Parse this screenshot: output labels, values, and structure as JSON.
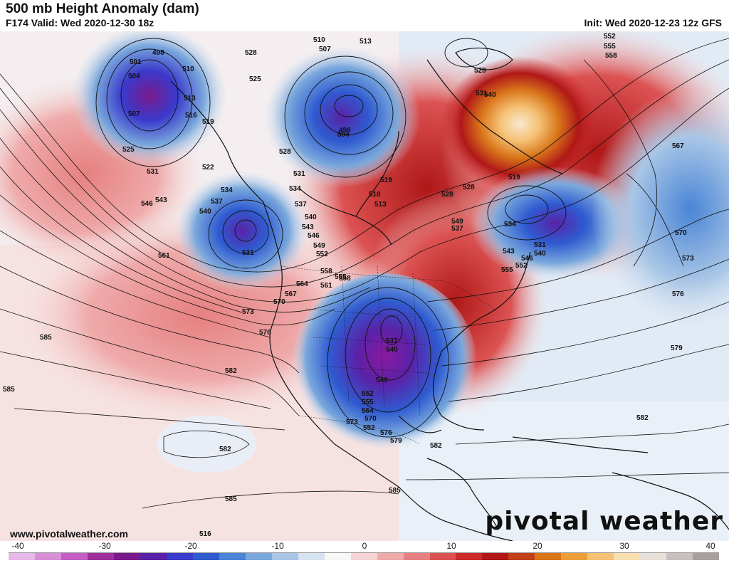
{
  "header": {
    "title": "500 mb Height Anomaly (dam)",
    "valid": "F174 Valid: Wed 2020-12-30 18z",
    "init": "Init: Wed 2020-12-23 12z GFS"
  },
  "footer": {
    "website": "www.pivotalweather.com",
    "brand": "pivotal weather"
  },
  "colorbar": {
    "ticks": [
      "-40",
      "-30",
      "-20",
      "-10",
      "0",
      "10",
      "20",
      "30",
      "40"
    ],
    "colors": [
      "#e6b8e8",
      "#d98fd8",
      "#c45ec4",
      "#a0309e",
      "#7a1a8c",
      "#5a22a8",
      "#3a3acc",
      "#2f5bd0",
      "#4a85d6",
      "#7aa8dc",
      "#a9c6e6",
      "#d6e3f1",
      "#f7f7f7",
      "#f4d4d4",
      "#ef aaaa",
      "#e68080",
      "#dc5252",
      "#cc2a2a",
      "#b01818",
      "#c0401a",
      "#d9761a",
      "#ec9e3a",
      "#f5c276",
      "#f8dfb0",
      "#e8e0d8",
      "#c8c0c0",
      "#a8a0a0"
    ]
  },
  "contour_labels": [
    "498",
    "501",
    "504",
    "507",
    "510",
    "510",
    "507",
    "513",
    "513",
    "516",
    "519",
    "519",
    "522",
    "525",
    "525",
    "528",
    "528",
    "528",
    "531",
    "531",
    "531",
    "531",
    "534",
    "534",
    "534",
    "537",
    "537",
    "537",
    "537",
    "540",
    "540",
    "540",
    "540",
    "543",
    "543",
    "543",
    "546",
    "546",
    "546",
    "549",
    "549",
    "552",
    "552",
    "552",
    "552",
    "555",
    "555",
    "555",
    "558",
    "558",
    "561",
    "561",
    "564",
    "564",
    "567",
    "567",
    "570",
    "570",
    "570",
    "573",
    "573",
    "573",
    "576",
    "576",
    "576",
    "579",
    "579",
    "582",
    "582",
    "582",
    "582",
    "585",
    "585",
    "585",
    "585",
    "498",
    "504",
    "510",
    "513",
    "516",
    "519",
    "528",
    "528",
    "531",
    "540",
    "549",
    "552",
    "555",
    "558"
  ],
  "colors": {
    "cold": "#3a3acc",
    "cold_core": "#7a1a8c",
    "warm": "#cc2a2a",
    "warm_core": "#f5c276",
    "background": "#ffffff"
  }
}
